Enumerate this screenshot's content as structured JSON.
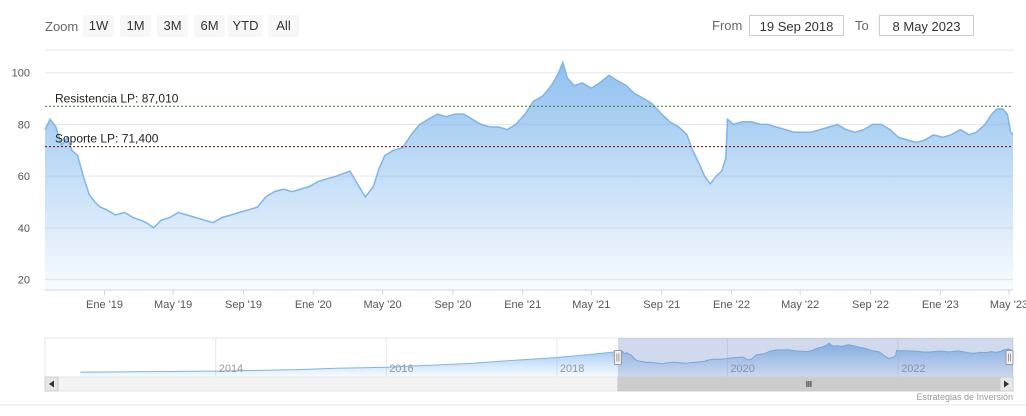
{
  "toolbar": {
    "zoom_label": "Zoom",
    "zoom_buttons": [
      "1W",
      "1M",
      "3M",
      "6M",
      "YTD",
      "All"
    ],
    "from_label": "From",
    "from_value": "19 Sep 2018",
    "to_label": "To",
    "to_value": "8 May 2023"
  },
  "credits": "Estrategias de Inversión",
  "colors": {
    "series_line": "#7cb5ec",
    "area_top": "#7cb5ec",
    "resistance_line": "#2e7d32",
    "support_line": "#8b0000",
    "navigator_mask": "rgba(102,133,194,0.3)"
  },
  "chart_data": {
    "type": "area",
    "title": "",
    "xlabel": "",
    "ylabel": "",
    "ylim": [
      16,
      108
    ],
    "yticks": [
      20,
      40,
      60,
      80,
      100
    ],
    "xlim": [
      "2018-09-19",
      "2023-05-08"
    ],
    "xticks": [
      {
        "date": "2019-01-01",
        "label": "Ene '19"
      },
      {
        "date": "2019-05-01",
        "label": "May '19"
      },
      {
        "date": "2019-09-01",
        "label": "Sep '19"
      },
      {
        "date": "2020-01-01",
        "label": "Ene '20"
      },
      {
        "date": "2020-05-01",
        "label": "May '20"
      },
      {
        "date": "2020-09-01",
        "label": "Sep '20"
      },
      {
        "date": "2021-01-01",
        "label": "Ene '21"
      },
      {
        "date": "2021-05-01",
        "label": "May '21"
      },
      {
        "date": "2021-09-01",
        "label": "Sep '21"
      },
      {
        "date": "2022-01-01",
        "label": "Ene '22"
      },
      {
        "date": "2022-05-01",
        "label": "May '22"
      },
      {
        "date": "2022-09-01",
        "label": "Sep '22"
      },
      {
        "date": "2023-01-01",
        "label": "Ene '23"
      },
      {
        "date": "2023-05-01",
        "label": "May '23"
      }
    ],
    "grid": true,
    "legend": "none",
    "series": [
      {
        "x": [
          "2018-09-19",
          "2018-09-28",
          "2018-10-08",
          "2018-10-18",
          "2018-10-28",
          "2018-11-05",
          "2018-11-15",
          "2018-11-25",
          "2018-12-05",
          "2018-12-15",
          "2018-12-25",
          "2019-01-05",
          "2019-01-20",
          "2019-02-05",
          "2019-02-20",
          "2019-03-05",
          "2019-03-15",
          "2019-03-28",
          "2019-04-10",
          "2019-04-25",
          "2019-05-10",
          "2019-05-25",
          "2019-06-10",
          "2019-06-25",
          "2019-07-10",
          "2019-07-25",
          "2019-08-10",
          "2019-08-25",
          "2019-09-10",
          "2019-09-25",
          "2019-10-10",
          "2019-10-25",
          "2019-11-10",
          "2019-11-25",
          "2019-12-10",
          "2019-12-25",
          "2020-01-10",
          "2020-01-25",
          "2020-02-10",
          "2020-02-22",
          "2020-03-05",
          "2020-03-18",
          "2020-04-01",
          "2020-04-15",
          "2020-04-25",
          "2020-05-05",
          "2020-05-20",
          "2020-06-05",
          "2020-06-20",
          "2020-07-05",
          "2020-07-20",
          "2020-08-05",
          "2020-08-20",
          "2020-09-05",
          "2020-09-20",
          "2020-10-05",
          "2020-10-20",
          "2020-11-05",
          "2020-11-20",
          "2020-12-05",
          "2020-12-20",
          "2021-01-05",
          "2021-01-20",
          "2021-02-05",
          "2021-02-20",
          "2021-03-05",
          "2021-03-12",
          "2021-03-20",
          "2021-04-01",
          "2021-04-15",
          "2021-05-01",
          "2021-05-15",
          "2021-06-01",
          "2021-06-15",
          "2021-07-01",
          "2021-07-15",
          "2021-08-01",
          "2021-08-15",
          "2021-09-01",
          "2021-09-15",
          "2021-10-01",
          "2021-10-15",
          "2021-10-25",
          "2021-11-05",
          "2021-11-15",
          "2021-11-25",
          "2021-12-05",
          "2021-12-15",
          "2021-12-22",
          "2021-12-25",
          "2022-01-05",
          "2022-01-20",
          "2022-02-05",
          "2022-02-20",
          "2022-03-05",
          "2022-03-20",
          "2022-04-05",
          "2022-04-20",
          "2022-05-05",
          "2022-05-20",
          "2022-06-05",
          "2022-06-20",
          "2022-07-05",
          "2022-07-20",
          "2022-08-05",
          "2022-08-20",
          "2022-09-05",
          "2022-09-20",
          "2022-10-05",
          "2022-10-20",
          "2022-11-05",
          "2022-11-20",
          "2022-12-05",
          "2022-12-20",
          "2023-01-05",
          "2023-01-20",
          "2023-02-05",
          "2023-02-20",
          "2023-03-05",
          "2023-03-20",
          "2023-04-01",
          "2023-04-10",
          "2023-04-20",
          "2023-04-28",
          "2023-05-04",
          "2023-05-08"
        ],
        "values": [
          78,
          82,
          79,
          72,
          75,
          70,
          68,
          60,
          53,
          50,
          48,
          47,
          45,
          46,
          44,
          43,
          42,
          40,
          43,
          44,
          46,
          45,
          44,
          43,
          42,
          44,
          45,
          46,
          47,
          48,
          52,
          54,
          55,
          54,
          55,
          56,
          58,
          59,
          60,
          61,
          62,
          57,
          52,
          56,
          63,
          68,
          70,
          71,
          76,
          80,
          82,
          84,
          83,
          84,
          84,
          82,
          80,
          79,
          79,
          78,
          80,
          84,
          89,
          91,
          95,
          100,
          104,
          98,
          95,
          96,
          94,
          96,
          99,
          97,
          95,
          92,
          90,
          88,
          84,
          81,
          79,
          76,
          70,
          65,
          60,
          57,
          60,
          62,
          67,
          82,
          80,
          81,
          81,
          80,
          80,
          79,
          78,
          77,
          77,
          77,
          78,
          79,
          80,
          78,
          77,
          78,
          80,
          80,
          78,
          75,
          74,
          73,
          74,
          76,
          75,
          76,
          78,
          76,
          77,
          80,
          84,
          86,
          86,
          84,
          77,
          76
        ]
      }
    ],
    "annotations": [
      {
        "type": "hline",
        "value": 87.01,
        "label": "Resistencia LP: 87,010"
      },
      {
        "type": "hline",
        "value": 71.4,
        "label": "Soporte LP: 71,400"
      }
    ],
    "navigator": {
      "xlim": [
        "2012-01-01",
        "2023-05-08"
      ],
      "ylim": [
        0,
        120
      ],
      "labels": [
        {
          "date": "2014-01-01",
          "label": "2014"
        },
        {
          "date": "2016-01-01",
          "label": "2016"
        },
        {
          "date": "2018-01-01",
          "label": "2018"
        },
        {
          "date": "2020-01-01",
          "label": "2020"
        },
        {
          "date": "2022-01-01",
          "label": "2022"
        }
      ],
      "x": [
        "2012-06-01",
        "2013-01-01",
        "2013-06-01",
        "2014-01-01",
        "2014-06-01",
        "2015-01-01",
        "2015-06-01",
        "2016-01-01",
        "2016-06-01",
        "2017-01-01",
        "2017-06-01",
        "2018-01-01",
        "2018-06-01",
        "2018-09-19"
      ],
      "values": [
        15,
        16,
        17,
        18,
        20,
        23,
        27,
        30,
        35,
        42,
        50,
        60,
        70,
        78
      ]
    }
  }
}
